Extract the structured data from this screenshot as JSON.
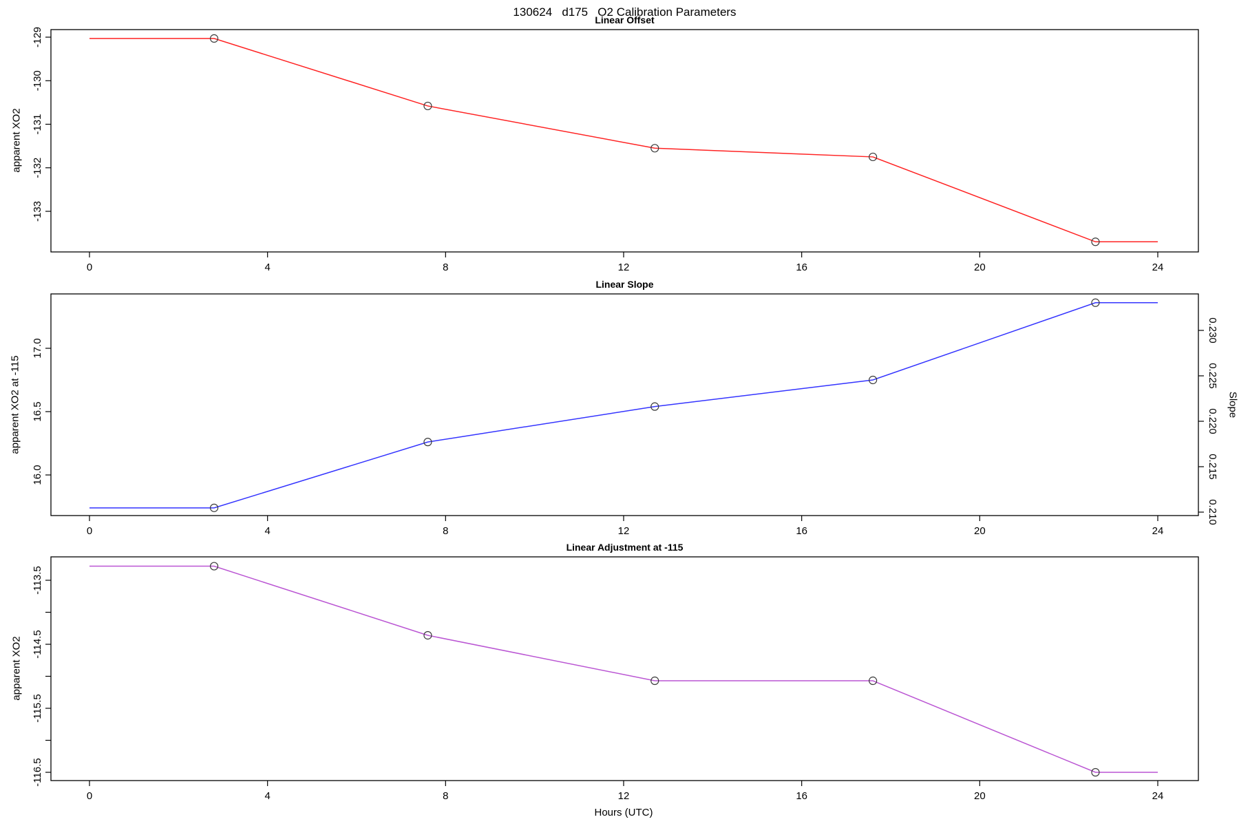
{
  "page_title": "130624   d175   O2 Calibration Parameters",
  "x_axis": {
    "label": "Hours (UTC)",
    "tick_values": [
      0,
      4,
      8,
      12,
      16,
      20,
      24
    ],
    "tick_labels": [
      "0",
      "4",
      "8",
      "12",
      "16",
      "20",
      "24"
    ],
    "range_hours": [
      0,
      24
    ]
  },
  "marker": {
    "shape": "open-circle",
    "stroke_color": "#3a3a3a"
  },
  "chart_data": [
    {
      "id": "offset",
      "type": "line",
      "title": "Linear Offset",
      "ylabel": "apparent XO2",
      "line_color": "#ff2222",
      "y_ticks": [
        {
          "value": -129,
          "label": "-129"
        },
        {
          "value": -130,
          "label": "-130"
        },
        {
          "value": -131,
          "label": "-131"
        },
        {
          "value": -132,
          "label": "-132"
        },
        {
          "value": -133,
          "label": "-133"
        }
      ],
      "x_hours": [
        2.8,
        7.6,
        12.7,
        17.6,
        22.6
      ],
      "values": [
        -129.03,
        -130.58,
        -131.55,
        -131.75,
        -133.7
      ],
      "line_extends_to_hours": [
        0,
        24
      ]
    },
    {
      "id": "slope",
      "type": "line",
      "title": "Linear Slope",
      "ylabel": "apparent XO2 at -115",
      "right_axis_label": "Slope",
      "line_color": "#3333ff",
      "y_ticks": [
        {
          "value": 17.0,
          "label": "17.0"
        },
        {
          "value": 16.5,
          "label": "16.5"
        },
        {
          "value": 16.0,
          "label": "16.0"
        }
      ],
      "right_y_ticks": [
        {
          "value": 0.23,
          "label": "0.230"
        },
        {
          "value": 0.225,
          "label": "0.225"
        },
        {
          "value": 0.22,
          "label": "0.220"
        },
        {
          "value": 0.215,
          "label": "0.215"
        },
        {
          "value": 0.21,
          "label": "0.210"
        }
      ],
      "x_hours": [
        2.8,
        7.6,
        12.7,
        17.6,
        22.6
      ],
      "values": [
        15.74,
        16.26,
        16.54,
        16.75,
        17.36
      ],
      "right_axis_values": [
        0.2105,
        0.2177,
        0.2216,
        0.2245,
        0.233
      ],
      "line_extends_to_hours": [
        0,
        24
      ]
    },
    {
      "id": "adjustment",
      "type": "line",
      "title": "Linear Adjustment at -115",
      "ylabel": "apparent XO2",
      "line_color": "#ba55d3",
      "y_ticks": [
        {
          "value": -113.5,
          "label": "-113.5"
        },
        {
          "value": -114.0,
          "label": ""
        },
        {
          "value": -114.5,
          "label": "-114.5"
        },
        {
          "value": -115.0,
          "label": ""
        },
        {
          "value": -115.5,
          "label": "-115.5"
        },
        {
          "value": -116.0,
          "label": ""
        },
        {
          "value": -116.5,
          "label": "-116.5"
        }
      ],
      "x_hours": [
        2.8,
        7.6,
        12.7,
        17.6,
        22.6
      ],
      "values": [
        -113.28,
        -114.36,
        -115.07,
        -115.07,
        -116.5
      ],
      "line_extends_to_hours": [
        0,
        24
      ]
    }
  ]
}
